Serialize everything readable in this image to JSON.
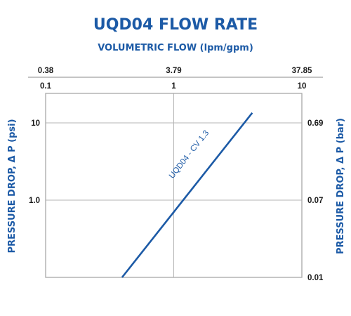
{
  "chart_data": {
    "type": "line",
    "title": "UQD04 FLOW RATE",
    "subtitle": "VOLUMETRIC FLOW (lpm/gpm)",
    "x_axis_bottom": {
      "scale": "log",
      "range": [
        0.1,
        10
      ],
      "ticks": [
        "0.1",
        "1",
        "10"
      ]
    },
    "x_axis_top": {
      "ticks": [
        "0.38",
        "3.79",
        "37.85"
      ]
    },
    "y_axis_left": {
      "label": "PRESSURE DROP, Δ P (psi)",
      "scale": "log",
      "range": [
        0.1,
        10
      ],
      "ticks": [
        "10",
        "1.0"
      ]
    },
    "y_axis_right": {
      "label": "PRESSURE DROP, Δ P (bar)",
      "ticks": [
        "0.69",
        "0.07",
        "0.01"
      ]
    },
    "series": [
      {
        "name": "UQD04 - CV 1.3",
        "color": "#1c5aa6",
        "points": [
          {
            "x": 0.395,
            "y": 0.1
          },
          {
            "x": 4.1,
            "y": 13.5
          }
        ]
      }
    ],
    "grid": true,
    "colors": {
      "accent": "#1c5aa6",
      "grid": "#b5b5b5",
      "text": "#1a1a1a"
    }
  }
}
